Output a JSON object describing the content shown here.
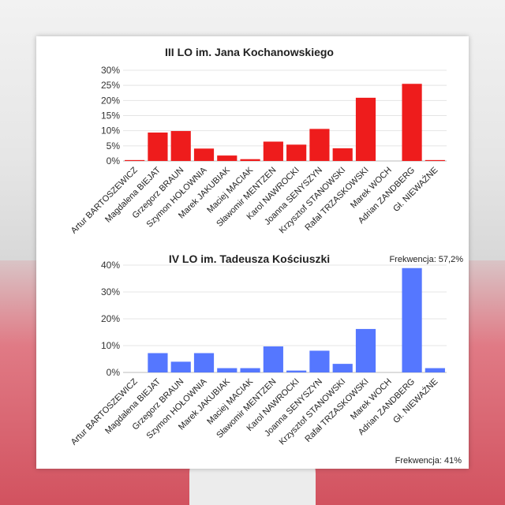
{
  "chart_data": [
    {
      "type": "bar",
      "title": "III LO im. Jana Kochanowskiego",
      "note": "",
      "categories": [
        "Artur BARTOSZEWICZ",
        "Magdalena BIEJAT",
        "Grzegorz BRAUN",
        "Szymon HOŁOWNIA",
        "Marek JAKUBIAK",
        "Maciej MACIAK",
        "Sławomir MENTZEN",
        "Karol NAWROCKI",
        "Joanna SENYSZYN",
        "Krzysztof STANOWSKI",
        "Rafał TRZASKOWSKI",
        "Marek WOCH",
        "Adrian ZANDBERG",
        "Gł. NIEWAŻNE"
      ],
      "values": [
        0.3,
        9.4,
        9.9,
        4.1,
        1.8,
        0.6,
        6.4,
        5.4,
        10.6,
        4.2,
        20.9,
        0,
        25.5,
        0.3
      ],
      "yticks": [
        "0%",
        "5%",
        "10%",
        "15%",
        "20%",
        "25%",
        "30%"
      ],
      "ylim": [
        0,
        30
      ],
      "color": "#ee1c1c",
      "grid": true
    },
    {
      "type": "bar",
      "title": "IV LO im. Tadeusza Kościuszki",
      "note": "Frekwencja: 57,2%",
      "categories": [
        "Artur BARTOSZEWICZ",
        "Magdalena BIEJAT",
        "Grzegorz BRAUN",
        "Szymon HOŁOWNIA",
        "Marek JAKUBIAK",
        "Maciej MACIAK",
        "Sławomir MENTZEN",
        "Karol NAWROCKI",
        "Joanna SENYSZYN",
        "Krzysztof STANOWSKI",
        "Rafał TRZASKOWSKI",
        "Marek WOCH",
        "Adrian ZANDBERG",
        "Gł. NIEWAŻNE"
      ],
      "values": [
        0,
        7.2,
        4.0,
        7.2,
        1.6,
        1.6,
        9.7,
        0.7,
        8.1,
        3.2,
        16.2,
        0,
        38.9,
        1.6
      ],
      "yticks": [
        "0%",
        "10%",
        "20%",
        "30%",
        "40%"
      ],
      "ylim": [
        0,
        40
      ],
      "color": "#5577ff",
      "grid": true
    }
  ],
  "footer_note": "Frekwencja: 41%"
}
